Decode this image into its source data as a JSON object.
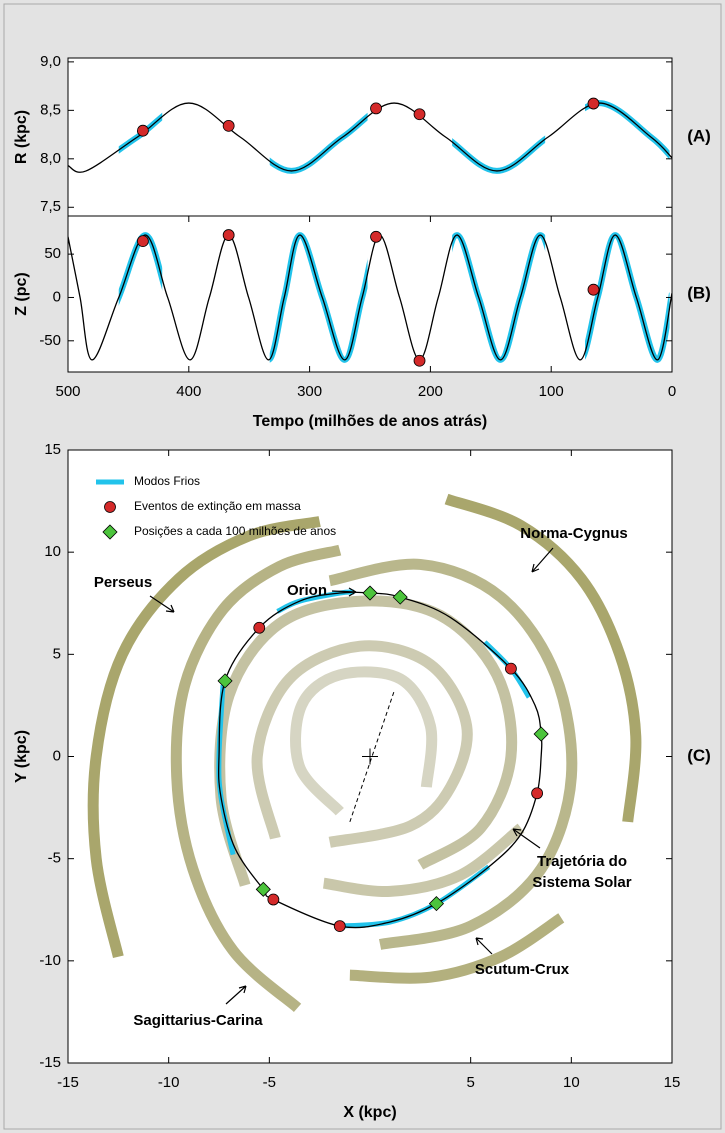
{
  "chart_data": [
    {
      "type": "line",
      "panel_label": "(A)",
      "ylabel": "R (kpc)",
      "xlim": [
        500,
        0
      ],
      "ylim": [
        7.41,
        9.04
      ],
      "yticks": [
        {
          "value": 7.5,
          "label": "7,5"
        },
        {
          "value": 8.0,
          "label": "8,0"
        },
        {
          "value": 8.5,
          "label": "8,5"
        },
        {
          "value": 9.0,
          "label": "9,0"
        }
      ],
      "x": [
        500,
        485,
        442.5,
        400,
        357.5,
        315,
        272.5,
        230,
        187.5,
        145,
        102.5,
        60,
        17.5,
        0
      ],
      "series": [
        {
          "color": "#000000",
          "values": [
            7.93,
            7.875,
            8.225,
            8.575,
            8.225,
            7.875,
            8.225,
            8.575,
            8.225,
            7.875,
            8.225,
            8.575,
            8.225,
            8.01
          ]
        }
      ],
      "highlight": {
        "color": "#22c3eb",
        "intervals": [
          [
            458,
            422
          ],
          [
            333,
            252
          ],
          [
            182,
            105
          ],
          [
            72,
            2
          ]
        ]
      },
      "events": {
        "color": "#d42a2a",
        "x": [
          438,
          367,
          245,
          209,
          65
        ],
        "values": [
          8.29,
          8.34,
          8.52,
          8.46,
          8.57
        ]
      }
    },
    {
      "type": "line",
      "panel_label": "(B)",
      "ylabel": "Z (pc)",
      "xlabel": "Tempo (milhões de anos atrás)",
      "xlim": [
        500,
        0
      ],
      "xticks": [
        500,
        400,
        300,
        200,
        100,
        0
      ],
      "ylim": [
        -86,
        94
      ],
      "yticks": [
        -50,
        0,
        50
      ],
      "x": [
        500,
        490,
        480,
        458,
        436,
        417.5,
        399,
        383,
        367,
        350.5,
        334,
        321,
        308,
        289.5,
        271,
        256.5,
        242,
        225.5,
        209,
        193.5,
        178,
        160,
        142,
        125.5,
        109,
        92.5,
        76,
        61.5,
        47,
        29.5,
        12,
        0
      ],
      "series": [
        {
          "color": "#000000",
          "values": [
            70,
            0,
            -72,
            0,
            72,
            0,
            -72,
            0,
            72,
            0,
            -72,
            0,
            72,
            0,
            -72,
            0,
            72,
            0,
            -72,
            0,
            72,
            0,
            -72,
            0,
            72,
            0,
            -72,
            0,
            72,
            0,
            -72,
            5
          ]
        }
      ],
      "highlight": {
        "color": "#22c3eb",
        "intervals": [
          [
            458,
            422
          ],
          [
            333,
            252
          ],
          [
            182,
            105
          ],
          [
            72,
            2
          ]
        ]
      },
      "events": {
        "color": "#d42a2a",
        "x": [
          438,
          367,
          245,
          209,
          65
        ],
        "values": [
          65,
          72,
          70,
          -73,
          9
        ]
      }
    },
    {
      "type": "orbit",
      "panel_label": "(C)",
      "xlabel": "X (kpc)",
      "ylabel": "Y (kpc)",
      "xlim": [
        -15,
        15
      ],
      "ylim": [
        -15,
        15
      ],
      "xticks": [
        -15,
        -10,
        -5,
        5,
        10,
        15
      ],
      "yticks": [
        -15,
        -10,
        -5,
        0,
        5,
        10,
        15
      ],
      "trajectory": {
        "color": "#000000",
        "closed": true,
        "x": [
          -7.5,
          -7.2,
          -5.5,
          -3.5,
          -1.5,
          0,
          1.5,
          4,
          7,
          8.2,
          8.5,
          8.5,
          8.3,
          7.5,
          5.9,
          3.3,
          1,
          -1.5,
          -4.8,
          -5.3,
          -6.7,
          -7.4
        ],
        "y": [
          0,
          3.7,
          6.3,
          7.6,
          8.0,
          8.0,
          7.8,
          6.8,
          4.3,
          2.5,
          1.1,
          0,
          -1.8,
          -3.8,
          -5.4,
          -7.2,
          -8.1,
          -8.3,
          -7.0,
          -6.5,
          -4.5,
          -2
        ]
      },
      "series": [
        {
          "name": "Modos Frios",
          "marker": "line",
          "color": "#22c3eb",
          "x": [
            -7.3,
            -7.5,
            -7.4,
            -6.8,
            null,
            -4.6,
            -3.5,
            -1.5,
            -0.8,
            null,
            5.7,
            7,
            7.9,
            null,
            -1.5,
            1,
            3.3,
            5.9
          ],
          "y": [
            3.5,
            0,
            -2,
            -4.8,
            null,
            7.1,
            7.6,
            8.0,
            8.05,
            null,
            5.6,
            4.3,
            2.9,
            null,
            -8.3,
            -8.1,
            -7.2,
            -5.4
          ]
        },
        {
          "name": "Eventos de extinção em massa",
          "marker": "circle",
          "color": "#d42a2a",
          "x": [
            -5.5,
            -1.5,
            -4.8,
            7,
            8.3
          ],
          "y": [
            6.3,
            -8.3,
            -7.0,
            4.3,
            -1.8
          ]
        },
        {
          "name": "Posições a cada 100 milhões de anos",
          "marker": "diamond",
          "color": "#4cc43c",
          "x": [
            -7.2,
            0,
            1.5,
            8.5,
            3.3,
            -5.3
          ],
          "y": [
            3.7,
            8.0,
            7.8,
            1.1,
            -7.2,
            -6.5
          ]
        }
      ],
      "annotations": [
        "Perseus",
        "Orion",
        "Norma-Cygnus",
        "Sagittarius-Carina",
        "Scutum-Crux"
      ],
      "trajectory_label": [
        "Trajetória do",
        "Sistema Solar"
      ]
    }
  ]
}
